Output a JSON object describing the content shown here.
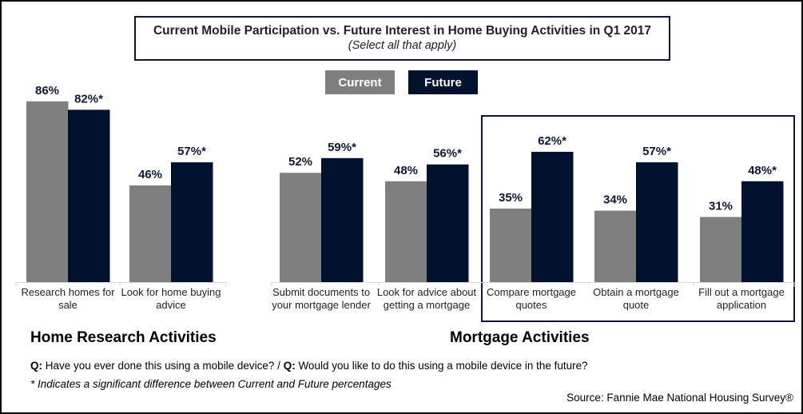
{
  "chart_data": {
    "type": "bar",
    "title": "Current Mobile Participation vs. Future Interest in Home Buying Activities in Q1 2017",
    "subtitle": "(Select all that apply)",
    "categories": [
      "Research homes for sale",
      "Look for home buying advice",
      "Submit documents to your mortgage lender",
      "Look for advice about getting a mortgage",
      "Compare mortgage quotes",
      "Obtain a mortgage quote",
      "Fill out a mortgage application"
    ],
    "series": [
      {
        "name": "Current",
        "color": "#7f7f7f",
        "values": [
          86,
          46,
          52,
          48,
          35,
          34,
          31
        ],
        "labels": [
          "86%",
          "46%",
          "52%",
          "48%",
          "35%",
          "34%",
          "31%"
        ]
      },
      {
        "name": "Future",
        "color": "#00112e",
        "values": [
          82,
          57,
          59,
          56,
          62,
          57,
          48
        ],
        "labels": [
          "82%*",
          "57%*",
          "59%*",
          "56%*",
          "62%*",
          "57%*",
          "48%*"
        ]
      }
    ],
    "ylim": [
      0,
      100
    ],
    "groups": [
      "Home Research Activities",
      "Mortgage Activities"
    ],
    "legend_position": "top-center"
  },
  "notes": {
    "q_prefix1": "Q:",
    "q1": " Have you ever done this using a mobile device? / ",
    "q_prefix2": "Q:",
    "q2": " Would you like to do this using a mobile device in the future?",
    "significance": "* Indicates a significant difference between Current and Future percentages",
    "source": "Source: Fannie Mae National Housing Survey®"
  }
}
